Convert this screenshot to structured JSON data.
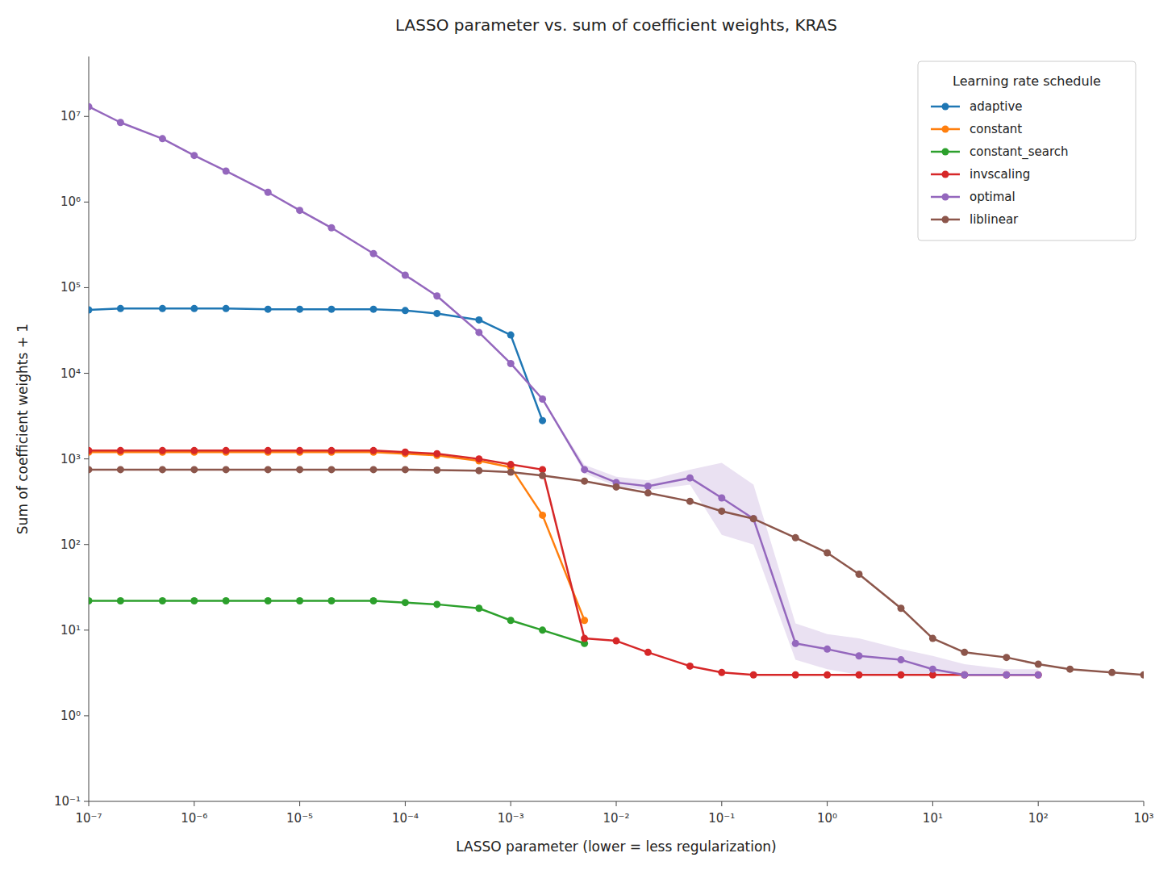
{
  "chart_data": {
    "type": "line",
    "title": "LASSO parameter vs. sum of coefficient weights, KRAS",
    "xlabel": "LASSO parameter (lower = less regularization)",
    "ylabel": "Sum of coefficient weights + 1",
    "legend_title": "Learning rate schedule",
    "log": true,
    "grid": false,
    "legend": "upper right",
    "marker": "circle",
    "xlim": [
      1e-07,
      1000
    ],
    "ylim": [
      0.1,
      50118723.36272722
    ],
    "xticks": [
      {
        "value": 1e-07,
        "label": "10⁻⁷"
      },
      {
        "value": 1e-06,
        "label": "10⁻⁶"
      },
      {
        "value": 1e-05,
        "label": "10⁻⁵"
      },
      {
        "value": 0.0001,
        "label": "10⁻⁴"
      },
      {
        "value": 0.001,
        "label": "10⁻³"
      },
      {
        "value": 0.01,
        "label": "10⁻²"
      },
      {
        "value": 0.1,
        "label": "10⁻¹"
      },
      {
        "value": 1,
        "label": "10⁰"
      },
      {
        "value": 10,
        "label": "10¹"
      },
      {
        "value": 100,
        "label": "10²"
      },
      {
        "value": 1000,
        "label": "10³"
      }
    ],
    "yticks": [
      {
        "value": 0.1,
        "label": "10⁻¹"
      },
      {
        "value": 1,
        "label": "10⁰"
      },
      {
        "value": 10,
        "label": "10¹"
      },
      {
        "value": 100,
        "label": "10²"
      },
      {
        "value": 1000,
        "label": "10³"
      },
      {
        "value": 10000,
        "label": "10⁴"
      },
      {
        "value": 100000,
        "label": "10⁵"
      },
      {
        "value": 1000000,
        "label": "10⁶"
      },
      {
        "value": 10000000,
        "label": "10⁷"
      }
    ],
    "series": [
      {
        "name": "adaptive",
        "color": "#1f77b4",
        "x": [
          1e-07,
          2e-07,
          5e-07,
          1e-06,
          2e-06,
          5e-06,
          1e-05,
          2e-05,
          5e-05,
          0.0001,
          0.0002,
          0.0005,
          0.001,
          0.002
        ],
        "values": [
          55000,
          57000,
          57000,
          57000,
          57000,
          56000,
          56000,
          56000,
          56000,
          54000,
          50000,
          42000,
          28000,
          2800
        ]
      },
      {
        "name": "constant",
        "color": "#ff7f0e",
        "x": [
          1e-07,
          2e-07,
          5e-07,
          1e-06,
          2e-06,
          5e-06,
          1e-05,
          2e-05,
          5e-05,
          0.0001,
          0.0002,
          0.0005,
          0.001,
          0.002,
          0.005
        ],
        "values": [
          1200,
          1200,
          1200,
          1200,
          1200,
          1200,
          1200,
          1200,
          1200,
          1150,
          1100,
          950,
          800,
          220,
          13
        ]
      },
      {
        "name": "constant_search",
        "color": "#2ca02c",
        "x": [
          1e-07,
          2e-07,
          5e-07,
          1e-06,
          2e-06,
          5e-06,
          1e-05,
          2e-05,
          5e-05,
          0.0001,
          0.0002,
          0.0005,
          0.001,
          0.002,
          0.005
        ],
        "values": [
          22,
          22,
          22,
          22,
          22,
          22,
          22,
          22,
          22,
          21,
          20,
          18,
          13,
          10,
          7
        ]
      },
      {
        "name": "invscaling",
        "color": "#d62728",
        "x": [
          1e-07,
          2e-07,
          5e-07,
          1e-06,
          2e-06,
          5e-06,
          1e-05,
          2e-05,
          5e-05,
          0.0001,
          0.0002,
          0.0005,
          0.001,
          0.002,
          0.005,
          0.01,
          0.02,
          0.05,
          0.1,
          0.2,
          0.5,
          1.0,
          2.0,
          5.0,
          10.0,
          20.0,
          50.0,
          100.0
        ],
        "values": [
          1250,
          1250,
          1250,
          1250,
          1250,
          1250,
          1250,
          1250,
          1250,
          1200,
          1150,
          1000,
          860,
          750,
          8,
          7.5,
          5.5,
          3.8,
          3.2,
          3.0,
          3.0,
          3.0,
          3.0,
          3.0,
          3.0,
          3.0,
          3.0,
          3.0
        ]
      },
      {
        "name": "optimal",
        "color": "#9467bd",
        "x": [
          1e-07,
          2e-07,
          5e-07,
          1e-06,
          2e-06,
          5e-06,
          1e-05,
          2e-05,
          5e-05,
          0.0001,
          0.0002,
          0.0005,
          0.001,
          0.002,
          0.005,
          0.01,
          0.02,
          0.05,
          0.1,
          0.2,
          0.5,
          1.0,
          2.0,
          5.0,
          10.0,
          20.0,
          50.0,
          100.0
        ],
        "values": [
          13000000.0,
          8500000.0,
          5500000.0,
          3500000.0,
          2300000.0,
          1300000.0,
          800000.0,
          500000.0,
          250000.0,
          140000.0,
          80000.0,
          30000.0,
          13000.0,
          5000,
          750,
          530,
          480,
          600,
          350,
          200,
          7,
          6,
          5,
          4.5,
          3.5,
          3.0,
          3.0,
          3.0
        ],
        "lower": [
          13000000.0,
          8500000.0,
          5500000.0,
          3500000.0,
          2300000.0,
          1300000.0,
          800000.0,
          500000.0,
          250000.0,
          140000.0,
          80000.0,
          30000.0,
          13000.0,
          5000,
          680,
          480,
          430,
          500,
          130,
          100,
          4.5,
          3.5,
          3.0,
          3.0,
          3.0,
          3.0,
          3.0,
          3.0
        ],
        "upper": [
          13000000.0,
          8500000.0,
          5500000.0,
          3500000.0,
          2300000.0,
          1300000.0,
          800000.0,
          500000.0,
          250000.0,
          140000.0,
          80000.0,
          30000.0,
          13000.0,
          5000,
          850,
          620,
          560,
          750,
          900,
          500,
          12,
          9,
          8,
          6,
          5,
          4.0,
          3.5,
          3.5
        ]
      },
      {
        "name": "liblinear",
        "color": "#8c564b",
        "x": [
          1e-07,
          2e-07,
          5e-07,
          1e-06,
          2e-06,
          5e-06,
          1e-05,
          2e-05,
          5e-05,
          0.0001,
          0.0002,
          0.0005,
          0.001,
          0.002,
          0.005,
          0.01,
          0.02,
          0.05,
          0.1,
          0.2,
          0.5,
          1.0,
          2.0,
          5.0,
          10.0,
          20.0,
          50.0,
          100.0,
          200.0,
          500.0,
          1000.0
        ],
        "values": [
          750,
          750,
          750,
          750,
          750,
          750,
          750,
          750,
          750,
          750,
          740,
          730,
          700,
          640,
          550,
          470,
          400,
          320,
          245,
          200,
          120,
          80,
          45,
          18,
          8,
          5.5,
          4.8,
          4.0,
          3.5,
          3.2,
          3.0
        ]
      }
    ]
  }
}
